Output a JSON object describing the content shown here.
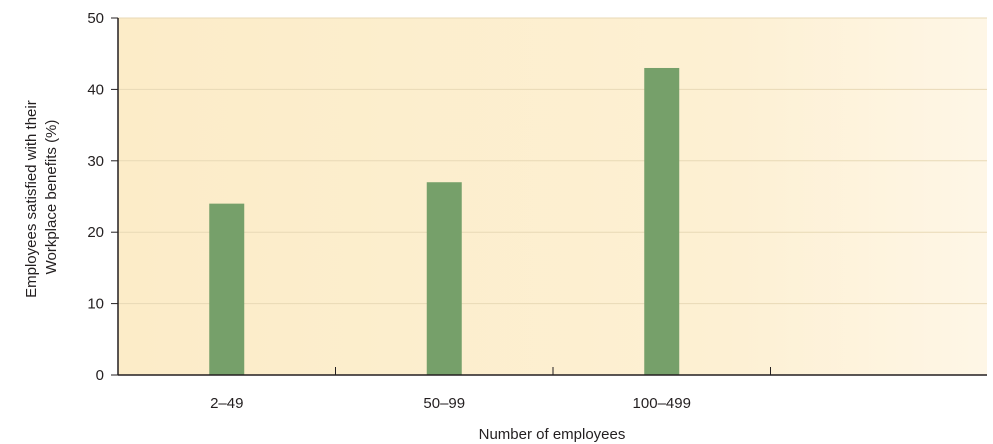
{
  "chart_data": {
    "type": "bar",
    "title": "",
    "xlabel": "Number of employees",
    "ylabel_lines": [
      "Employees satisfied with their",
      "Workplace benefits (%)"
    ],
    "categories": [
      "2–49",
      "50–99",
      "100–499",
      ""
    ],
    "values": [
      24,
      27,
      43,
      null
    ],
    "ylim": [
      0,
      50
    ],
    "yticks": [
      0,
      10,
      20,
      30,
      40,
      50
    ],
    "grid": true,
    "legend": "none",
    "colors": {
      "bar": "#76a06a",
      "plot_background": "#fdefcd",
      "gridline": "#e8d9b6",
      "axis": "#231f20"
    }
  }
}
